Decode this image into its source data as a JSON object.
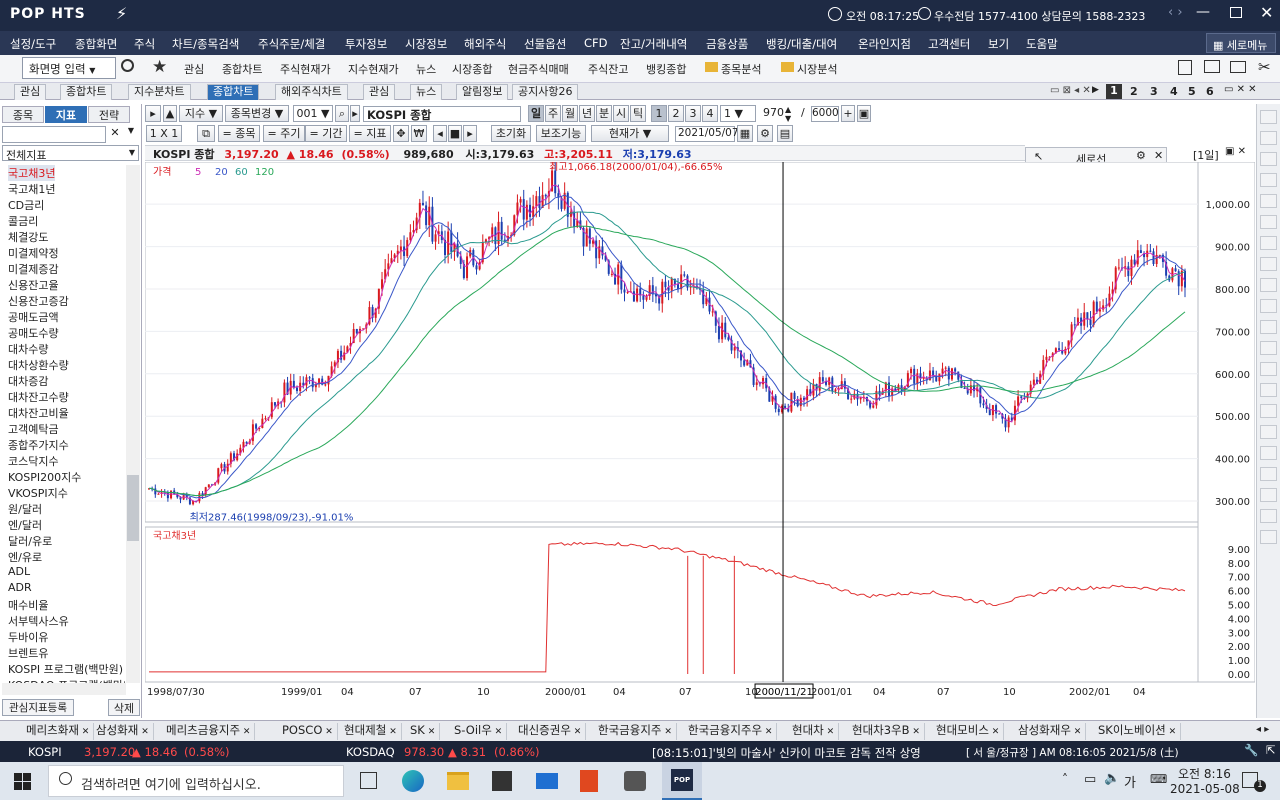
{
  "app": {
    "name": "POP HTS",
    "title_right": "오전 08:17:25",
    "support": "우수전담 1577-4100 상담문의 1588-2323",
    "menu_button": "세로메뉴"
  },
  "menu": [
    "설정/도구",
    "종합화면",
    "주식",
    "차트/종목검색",
    "주식주문/체결",
    "투자정보",
    "시장정보",
    "해외주식",
    "선물옵션",
    "CFD",
    "잔고/거래내역",
    "금융상품",
    "뱅킹/대출/대여",
    "온라인지점",
    "고객센터",
    "보기",
    "도움말"
  ],
  "toolbar": {
    "screen_input": "화면명 입력",
    "items": [
      "관심",
      "종합차트",
      "주식현재가",
      "지수현재가",
      "뉴스",
      "시장종합",
      "현금주식매매",
      "주식잔고",
      "뱅킹종합"
    ],
    "folders": [
      "종목분석",
      "시장분석"
    ]
  },
  "tabs": [
    "관심",
    "종합차트",
    "지수분차트",
    "종합차트",
    "해외주식차트",
    "관심",
    "뉴스",
    "알림정보",
    "공지사항26"
  ],
  "tab_pages": [
    "1",
    "2",
    "3",
    "4",
    "5",
    "6"
  ],
  "left_panel": {
    "tabs": [
      "종목",
      "지표",
      "전략"
    ],
    "category": "전체지표",
    "items": [
      "국고채3년",
      "국고채1년",
      "CD금리",
      "콜금리",
      "체결강도",
      "미결제약정",
      "미결제증감",
      "신용잔고율",
      "신용잔고증감",
      "공매도금액",
      "공매도수량",
      "대차수량",
      "대차상환수량",
      "대차증감",
      "대차잔고수량",
      "대차잔고비율",
      "고객예탁금",
      "종합주가지수",
      "코스닥지수",
      "KOSPI200지수",
      "VKOSPI지수",
      "원/달러",
      "엔/달러",
      "달러/유로",
      "엔/유로",
      "ADL",
      "ADR",
      "매수비율",
      "서부텍사스유",
      "두바이유",
      "브렌트유",
      "KOSPI 프로그램(백만원)",
      "KOSDAQ 프로그램(백만원)"
    ],
    "register_btn": "관심지표등록",
    "delete_btn": "삭제"
  },
  "chart_controls": {
    "type": "지수",
    "change": "종목변경",
    "code": "001",
    "name": "KOSPI 종합",
    "periods": [
      "일",
      "주",
      "월",
      "년",
      "분",
      "시",
      "틱"
    ],
    "counts": [
      "1",
      "2",
      "3",
      "4",
      "1"
    ],
    "bars": "970",
    "total": "6000",
    "row2": [
      "1 X 1",
      "= 종목",
      "= 주기",
      "= 기간",
      "= 지표"
    ],
    "reset": "초기화",
    "assist": "보조기능",
    "price_type": "현재가",
    "date": "2021/05/07"
  },
  "info_line": {
    "name": "KOSPI 종합",
    "price": "3,197.20",
    "change": "▲ 18.46",
    "pct": "(0.58%)",
    "volume": "989,680",
    "open": "시:3,179.63",
    "high": "고:3,205.11",
    "low": "저:3,179.63"
  },
  "side_panel": {
    "title": "세로선",
    "period": "[1일]"
  },
  "legend": {
    "label": "가격",
    "mas": [
      "5",
      "20",
      "60",
      "120"
    ]
  },
  "annotations": {
    "max": "최고1,066.18(2000/01/04),-66.65%",
    "min": "최저287.46(1998/09/23),-91.01%"
  },
  "sub_legend": "국고채3년",
  "crosshair_date": "2000/11/21",
  "x_labels": [
    "1998/07/30",
    "1999/01",
    "04",
    "07",
    "10",
    "2000/01",
    "04",
    "07",
    "10",
    "2001/01",
    "04",
    "07",
    "10",
    "2002/01",
    "04"
  ],
  "colors": {
    "up": "#d9191e",
    "down": "#1b3fb0",
    "ma5": "#cc2db5",
    "ma20": "#3b58c9",
    "ma60": "#2a9a8f",
    "ma120": "#2aa85a",
    "bond": "#e03030"
  },
  "chart_data": [
    {
      "type": "candlestick",
      "title": "KOSPI 종합",
      "y_ticks": [
        "1,000.00",
        "900.00",
        "800.00",
        "700.00",
        "600.00",
        "500.00",
        "400.00",
        "300.00"
      ],
      "ylim": [
        260,
        1090
      ],
      "x": [
        "1998/07",
        "1998/09",
        "1998/11",
        "1999/01",
        "1999/03",
        "1999/05",
        "1999/07",
        "1999/09",
        "1999/11",
        "2000/01",
        "2000/03",
        "2000/05",
        "2000/07",
        "2000/09",
        "2000/11",
        "2001/01",
        "2001/03",
        "2001/05",
        "2001/07",
        "2001/09",
        "2001/11",
        "2002/01",
        "2002/03",
        "2002/05"
      ],
      "close": [
        330,
        300,
        420,
        560,
        600,
        760,
        990,
        850,
        960,
        1060,
        870,
        780,
        810,
        650,
        520,
        580,
        540,
        600,
        590,
        480,
        640,
        750,
        900,
        830
      ],
      "max_point": {
        "date": "2000/01/04",
        "value": 1066.18
      },
      "min_point": {
        "date": "1998/09/23",
        "value": 287.46
      }
    },
    {
      "type": "line",
      "name": "국고채3년",
      "y_ticks": [
        "9.00",
        "8.00",
        "7.00",
        "6.00",
        "5.00",
        "4.00",
        "3.00",
        "2.00",
        "1.00",
        "0.00"
      ],
      "ylim": [
        0,
        10
      ],
      "x": [
        "1998/07",
        "1999/07",
        "2000/01",
        "2000/04",
        "2000/07",
        "2000/10",
        "2001/01",
        "2001/04",
        "2001/07",
        "2001/10",
        "2002/01",
        "2002/04",
        "2002/05"
      ],
      "values": [
        0,
        0,
        9.3,
        9.4,
        9.0,
        8.0,
        6.8,
        5.6,
        5.9,
        5.0,
        6.1,
        6.3,
        6.0
      ]
    }
  ],
  "stocks": [
    "메리츠화재",
    "삼성화재",
    "메리츠금융지주",
    "POSCO",
    "현대제철",
    "SK",
    "S-Oil우",
    "대신증권우",
    "한국금융지주",
    "한국금융지주우",
    "현대차",
    "현대차3우B",
    "현대모비스",
    "삼성화재우",
    "SK이노베이션"
  ],
  "ticker": {
    "kospi_label": "KOSPI",
    "kospi": "3,197.20",
    "kospi_chg": "▲ 18.46",
    "kospi_pct": "(0.58%)",
    "kosdaq_label": "KOSDAQ",
    "kosdaq": "978.30",
    "kosdaq_chg": "▲ 8.31",
    "kosdaq_pct": "(0.86%)",
    "news": "[08:15:01]'빛의 마술사' 신카이 마코토 감독 전작 상영",
    "status": "[ 서   울/정규장 ] AM 08:16:05  2021/5/8 (土)"
  },
  "taskbar": {
    "search": "검색하려면 여기에 입력하십시오.",
    "time": "오전 8:16",
    "date": "2021-05-08",
    "lang": "가",
    "notif": "1"
  }
}
